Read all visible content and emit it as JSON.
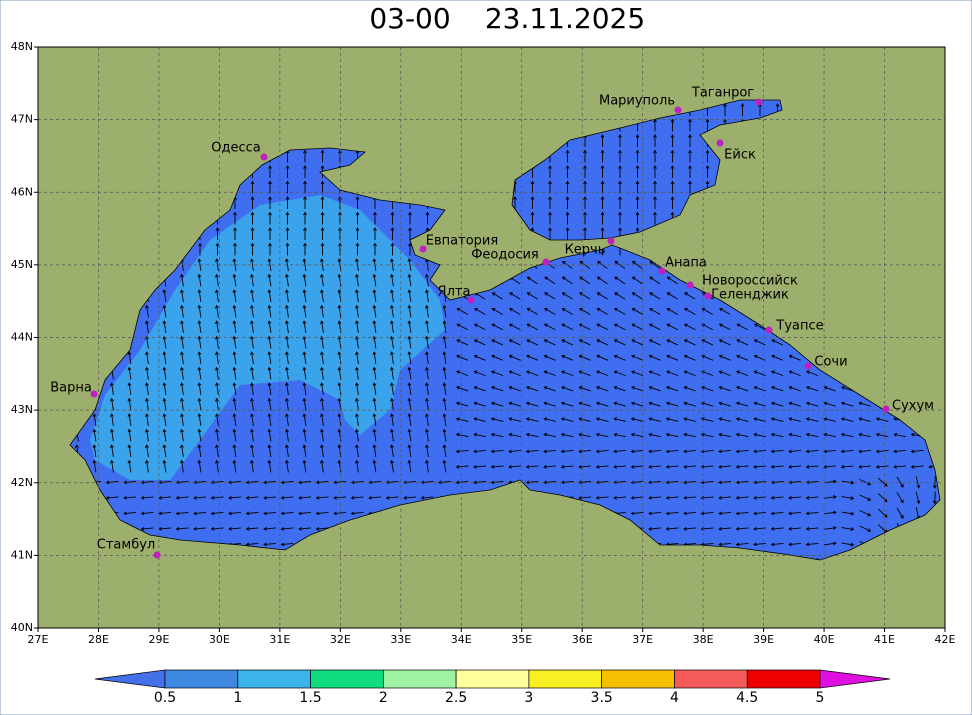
{
  "header": {
    "time": "03-00",
    "date": "23.11.2025"
  },
  "map": {
    "lat_ticks": [
      "40N",
      "41N",
      "42N",
      "43N",
      "44N",
      "45N",
      "46N",
      "47N",
      "48N"
    ],
    "lon_ticks": [
      "27E",
      "28E",
      "29E",
      "30E",
      "31E",
      "32E",
      "33E",
      "34E",
      "35E",
      "36E",
      "37E",
      "38E",
      "39E",
      "40E",
      "41E",
      "42E"
    ],
    "land_color": "#9caf6c",
    "sea_color": "#3f6ff0",
    "cities": [
      {
        "name": "Одесса"
      },
      {
        "name": "Мариуполь"
      },
      {
        "name": "Таганрог"
      },
      {
        "name": "Ейск"
      },
      {
        "name": "Евпатория"
      },
      {
        "name": "Феодосия"
      },
      {
        "name": "Керчь"
      },
      {
        "name": "Анапа"
      },
      {
        "name": "Ялта"
      },
      {
        "name": "Новороссийск"
      },
      {
        "name": "Геленджик"
      },
      {
        "name": "Туапсе"
      },
      {
        "name": "Сочи"
      },
      {
        "name": "Сухум"
      },
      {
        "name": "Варна"
      },
      {
        "name": "Стамбул"
      }
    ]
  },
  "colorbar": {
    "labels": [
      "0.5",
      "1",
      "1.5",
      "2",
      "2.5",
      "3",
      "3.5",
      "4",
      "4.5",
      "5"
    ],
    "colors": [
      "#4470e8",
      "#3e88e2",
      "#3ab4ea",
      "#10dc80",
      "#9ef2a2",
      "#ffff9c",
      "#f8f020",
      "#f6c000",
      "#f45a5a",
      "#ee0000",
      "#e010e0"
    ]
  }
}
